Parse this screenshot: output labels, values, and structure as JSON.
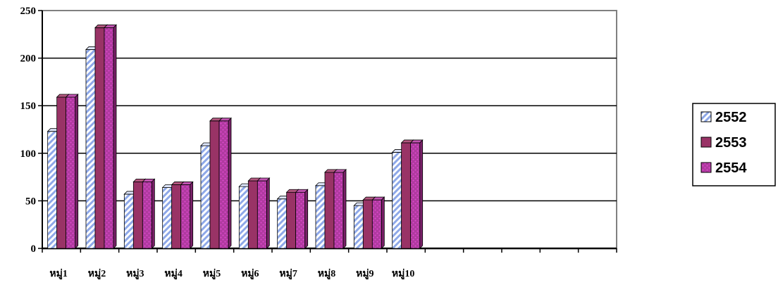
{
  "chart_data": {
    "type": "bar",
    "title": "",
    "xlabel": "",
    "ylabel": "",
    "ylim": [
      0,
      250
    ],
    "yticks": [
      0,
      50,
      100,
      150,
      200,
      250
    ],
    "categories": [
      "หมู่1",
      "หมู่2",
      "หมู่3",
      "หมู่4",
      "หมู่5",
      "หมู่6",
      "หมู่7",
      "หมู่8",
      "หมู่9",
      "หมู่10"
    ],
    "empty_slots": 5,
    "grid": true,
    "legend_position": "right",
    "series": [
      {
        "name": "2552",
        "values": [
          123,
          209,
          57,
          64,
          108,
          65,
          52,
          66,
          45,
          101
        ],
        "color": "#c8d4f4",
        "pattern": "diagonal-stripe-blue"
      },
      {
        "name": "2553",
        "values": [
          159,
          232,
          70,
          67,
          134,
          71,
          59,
          80,
          51,
          111
        ],
        "color": "#993366",
        "pattern": "solid"
      },
      {
        "name": "2554",
        "values": [
          159,
          232,
          70,
          67,
          134,
          71,
          59,
          80,
          51,
          111
        ],
        "color": "#a2308f",
        "pattern": "dotted-purple"
      }
    ]
  }
}
